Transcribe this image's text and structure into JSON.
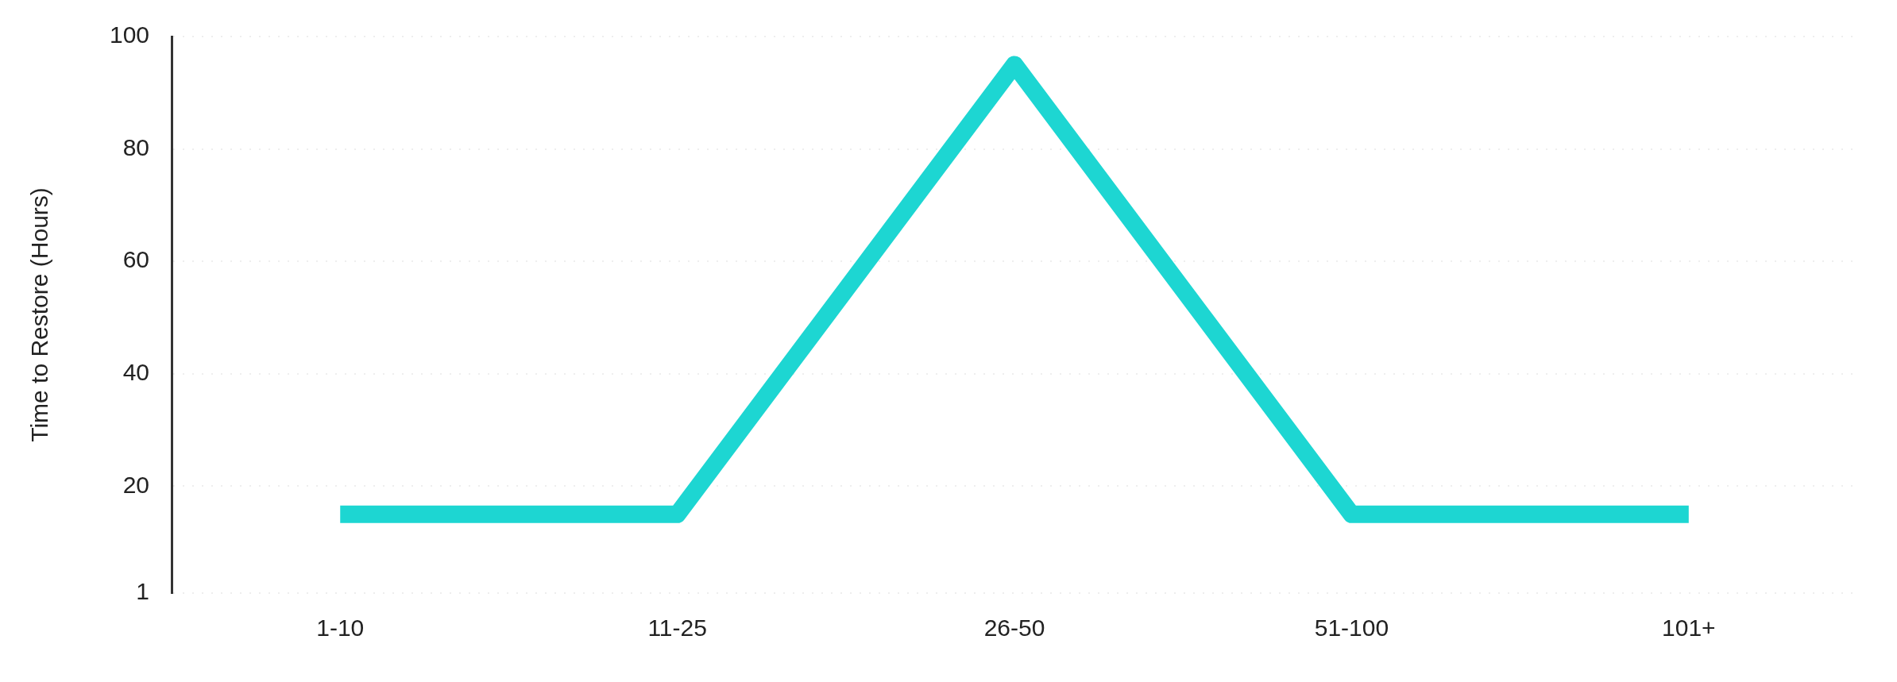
{
  "chart_data": {
    "type": "line",
    "ylabel": "Time to Restore (Hours)",
    "categories": [
      "1-10",
      "11-25",
      "26-50",
      "51-100",
      "101+"
    ],
    "series": [
      {
        "color": "#1dd6d2",
        "values": [
          15,
          15,
          95,
          15,
          15
        ]
      }
    ],
    "ylim": [
      1,
      100
    ],
    "yticks": [
      1,
      20,
      40,
      60,
      80,
      100
    ],
    "grid": "y",
    "legend": false,
    "marker": "none",
    "line_style": "solid"
  }
}
